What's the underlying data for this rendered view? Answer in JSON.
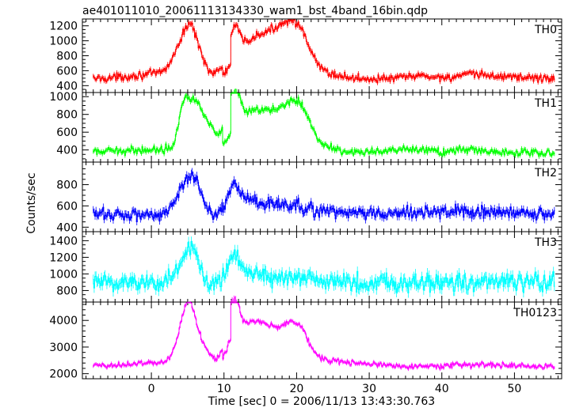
{
  "chart_data": {
    "type": "line",
    "title": "ae401011010_20061113134330_wam1_bst_4band_16bin.qdp",
    "xlabel": "Time [sec] 0 = 2006/11/13 13:43:30.763",
    "ylabel": "Counts/sec",
    "xlim": [
      -9.5,
      56.5
    ],
    "xticks": [
      0,
      10,
      20,
      30,
      40,
      50
    ],
    "x_minor_step": 1,
    "x_sampling": {
      "start": -8,
      "end": 55.5,
      "step": 0.125
    },
    "grid": false,
    "panels": [
      {
        "name": "TH0",
        "color": "#ff0000",
        "ylim": [
          340,
          1260
        ],
        "yticks": [
          400,
          600,
          800,
          1000,
          1200
        ],
        "y_minor_step": 50,
        "baseline": 490,
        "noise": 40,
        "pulses": [
          [
            -2,
            3,
            30
          ],
          [
            1.5,
            2.5,
            50
          ],
          [
            4.2,
            1.2,
            420
          ],
          [
            6.2,
            1.0,
            380
          ],
          [
            5.2,
            0.6,
            200
          ],
          [
            11.4,
            0.7,
            380
          ],
          [
            12.5,
            2.2,
            280
          ],
          [
            15,
            2.0,
            320
          ],
          [
            17.5,
            1.7,
            360
          ],
          [
            19.5,
            1.5,
            380
          ],
          [
            20.8,
            1.5,
            250
          ],
          [
            23,
            2.5,
            80
          ],
          [
            37,
            2,
            40
          ],
          [
            44,
            2,
            50
          ],
          [
            49,
            3,
            30
          ]
        ],
        "cutoff": 11.0,
        "cutoff_scale": 0.35,
        "label_color": "#000000"
      },
      {
        "name": "TH1",
        "color": "#00ff00",
        "ylim": [
          290,
          1020
        ],
        "yticks": [
          400,
          600,
          800,
          1000
        ],
        "y_minor_step": 50,
        "baseline": 370,
        "noise": 32,
        "pulses": [
          [
            -3,
            3,
            20
          ],
          [
            2,
            2.5,
            30
          ],
          [
            4.3,
            0.6,
            230
          ],
          [
            5.5,
            1.2,
            500
          ],
          [
            7.5,
            1.2,
            260
          ],
          [
            11.3,
            0.8,
            470
          ],
          [
            12.5,
            2.2,
            280
          ],
          [
            15,
            1.8,
            250
          ],
          [
            17.5,
            1.6,
            270
          ],
          [
            19.5,
            1.4,
            300
          ],
          [
            21,
            1.3,
            260
          ],
          [
            23,
            2.5,
            60
          ],
          [
            36,
            2.5,
            35
          ],
          [
            44,
            2,
            30
          ]
        ],
        "cutoff": 11.0,
        "cutoff_scale": 0.3,
        "label_color": "#000000"
      },
      {
        "name": "TH2",
        "color": "#0000ff",
        "ylim": [
          380,
          990
        ],
        "yticks": [
          400,
          600,
          800
        ],
        "y_minor_step": 50,
        "baseline": 520,
        "noise": 45,
        "pulses": [
          [
            4.5,
            1.2,
            200
          ],
          [
            6,
            1.0,
            260
          ],
          [
            11.2,
            0.8,
            180
          ],
          [
            12.5,
            1.5,
            130
          ],
          [
            16,
            2.0,
            80
          ],
          [
            20,
            2.0,
            60
          ],
          [
            26,
            3,
            20
          ],
          [
            38,
            3,
            25
          ],
          [
            43,
            2,
            20
          ],
          [
            48,
            3,
            15
          ]
        ],
        "cutoff": 10.5,
        "cutoff_scale": 0.9,
        "label_color": "#000000"
      },
      {
        "name": "TH3",
        "color": "#00ffff",
        "ylim": [
          690,
          1480
        ],
        "yticks": [
          800,
          1000,
          1200,
          1400
        ],
        "y_minor_step": 50,
        "baseline": 900,
        "noise": 85,
        "pulses": [
          [
            4.5,
            1.2,
            200
          ],
          [
            5.8,
            0.8,
            280
          ],
          [
            11.3,
            0.7,
            250
          ],
          [
            12.5,
            1.8,
            120
          ],
          [
            15,
            2,
            60
          ],
          [
            20,
            2,
            40
          ]
        ],
        "cutoff": 10.5,
        "cutoff_scale": 0.95,
        "label_color": "#000000"
      },
      {
        "name": "TH0123",
        "color": "#ff00ff",
        "ylim": [
          1900,
          4600
        ],
        "yticks": [
          2000,
          3000,
          4000
        ],
        "y_minor_step": 200,
        "baseline": 2280,
        "noise": 80,
        "pulses": [
          [
            -3,
            3,
            60
          ],
          [
            2,
            2.5,
            120
          ],
          [
            4.3,
            1.0,
            1100
          ],
          [
            5.3,
            0.8,
            1500
          ],
          [
            6.8,
            1.0,
            800
          ],
          [
            11.3,
            0.7,
            1700
          ],
          [
            12.5,
            2.0,
            1100
          ],
          [
            15,
            1.8,
            900
          ],
          [
            17.5,
            1.6,
            800
          ],
          [
            19.5,
            1.3,
            950
          ],
          [
            21,
            1.2,
            600
          ],
          [
            23.5,
            2.5,
            200
          ],
          [
            29,
            3,
            80
          ],
          [
            45,
            3,
            60
          ]
        ],
        "cutoff": 11.0,
        "cutoff_scale": 0.45,
        "label_color": "#000000"
      }
    ]
  }
}
